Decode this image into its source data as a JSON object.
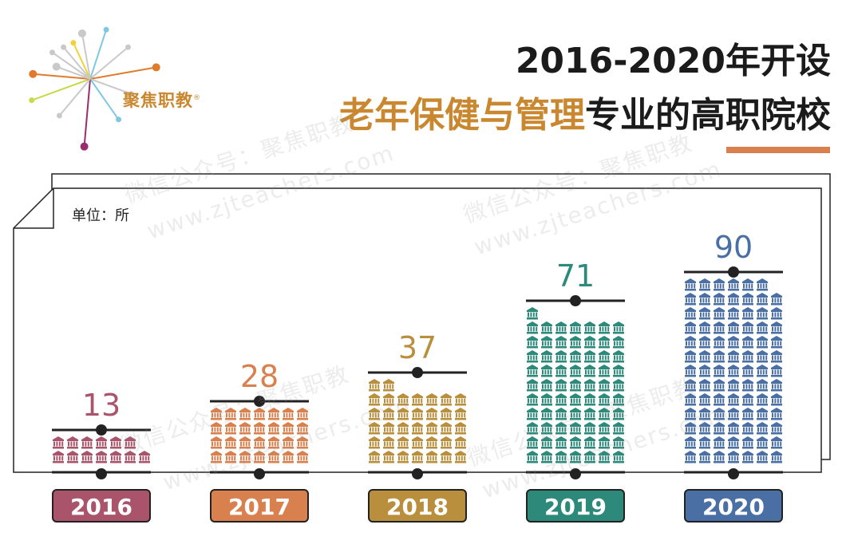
{
  "logo": {
    "text": "聚焦职教",
    "mark": "®"
  },
  "title": {
    "line1": "2016-2020年开设",
    "line2_highlight": "老年保健与管理",
    "line2_rest": "专业的高职院校"
  },
  "watermark": {
    "line1": "微信公众号：聚焦职教",
    "line2": "www.zjteachers.com"
  },
  "chart_data": {
    "type": "bar",
    "title": "",
    "unit": "单位：所",
    "categories": [
      "2016",
      "2017",
      "2018",
      "2019",
      "2020"
    ],
    "values": [
      13,
      28,
      37,
      71,
      90
    ],
    "colors": [
      "#a9546a",
      "#d9804f",
      "#b98f3e",
      "#2d8a7a",
      "#4a6fa5"
    ],
    "icon": "building-icon",
    "xlabel": "",
    "ylabel": ""
  }
}
